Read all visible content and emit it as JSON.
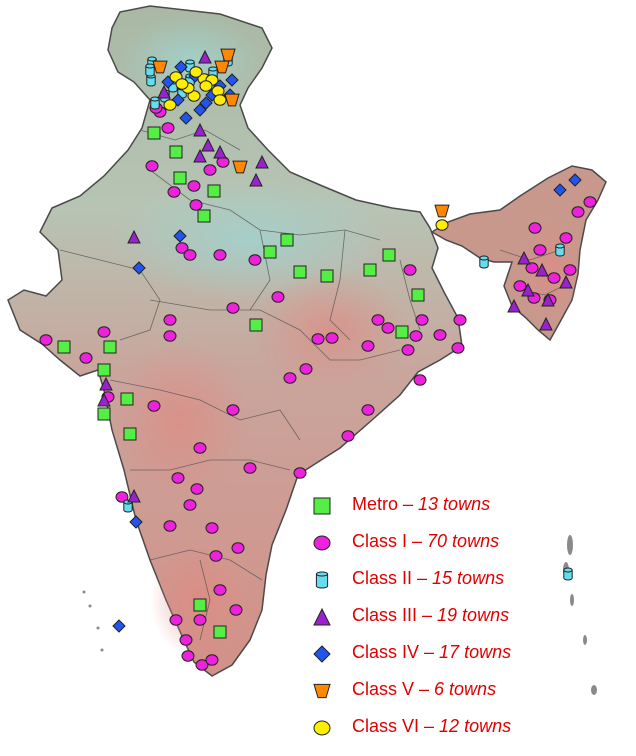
{
  "colors": {
    "metro": "#55ee44",
    "class1": "#ee22dd",
    "class2": "#66ddee",
    "class3": "#9922cc",
    "class4": "#2255ee",
    "class5": "#ff8800",
    "class6": "#ffee00",
    "legend_text": "#e00000",
    "land_base": "#b9c1a6",
    "land_warm": "#d59a92",
    "land_cool": "#9fcfc9",
    "boundary": "#555555"
  },
  "legend": [
    {
      "key": "metro",
      "marker": "square-icon",
      "class_label": "Metro",
      "sep": " – ",
      "count_label": "13 towns"
    },
    {
      "key": "class1",
      "marker": "circle-icon",
      "class_label": "Class I",
      "sep": " – ",
      "count_label": "70  towns"
    },
    {
      "key": "class2",
      "marker": "cylinder-icon",
      "class_label": "Class II",
      "sep": " – ",
      "count_label": "15 towns"
    },
    {
      "key": "class3",
      "marker": "triangle-icon",
      "class_label": "Class III",
      "sep": " – ",
      "count_label": "19 towns"
    },
    {
      "key": "class4",
      "marker": "diamond-icon",
      "class_label": "Class IV",
      "sep": " – ",
      "count_label": "17 towns"
    },
    {
      "key": "class5",
      "marker": "inverted-trapezoid-icon",
      "class_label": "Class V",
      "sep": " – ",
      "count_label": "6 towns"
    },
    {
      "key": "class6",
      "marker": "circle-icon",
      "class_label": "Class VI",
      "sep": " – ",
      "count_label": "12 towns"
    }
  ]
}
